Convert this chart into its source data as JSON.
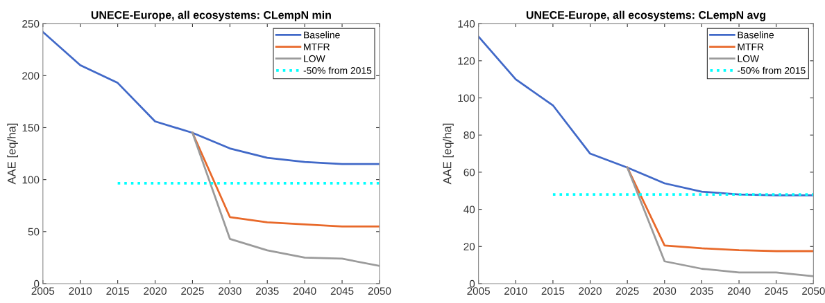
{
  "chart_data": [
    {
      "type": "line",
      "title": "UNECE-Europe, all ecosystems: CLempN min",
      "ylabel": "AAE [eq/ha]",
      "x": [
        2005,
        2010,
        2015,
        2020,
        2025,
        2030,
        2035,
        2040,
        2045,
        2050
      ],
      "series": [
        {
          "name": "Baseline",
          "color": "#4169c8",
          "values": [
            242,
            210,
            193,
            156,
            145,
            130,
            121,
            117,
            115,
            115
          ]
        },
        {
          "name": "MTFR",
          "color": "#e8692a",
          "x": [
            2025,
            2030,
            2035,
            2040,
            2045,
            2050
          ],
          "values": [
            145,
            64,
            59,
            57,
            55,
            55
          ]
        },
        {
          "name": "LOW",
          "color": "#9b9b9b",
          "x": [
            2025,
            2030,
            2035,
            2040,
            2045,
            2050
          ],
          "values": [
            145,
            43,
            32,
            25,
            24,
            17
          ]
        },
        {
          "name": "-50% from 2015",
          "color": "#00ffff",
          "line_style": "dotted",
          "x": [
            2015,
            2050
          ],
          "values": [
            96.5,
            96.5
          ]
        }
      ],
      "xlim": [
        2005,
        2050
      ],
      "xticks": [
        2005,
        2010,
        2015,
        2020,
        2025,
        2030,
        2035,
        2040,
        2045,
        2050
      ],
      "ylim": [
        0,
        250
      ],
      "yticks": [
        0,
        50,
        100,
        150,
        200,
        250
      ],
      "legend": "top right",
      "line_style": "solid"
    },
    {
      "type": "line",
      "title": "UNECE-Europe, all ecosystems: CLempN avg",
      "ylabel": "AAE [eq/ha]",
      "x": [
        2005,
        2010,
        2015,
        2020,
        2025,
        2030,
        2035,
        2040,
        2045,
        2050
      ],
      "series": [
        {
          "name": "Baseline",
          "color": "#4169c8",
          "values": [
            133,
            110,
            96,
            70,
            62.5,
            54,
            49.5,
            48,
            47.5,
            47.5
          ]
        },
        {
          "name": "MTFR",
          "color": "#e8692a",
          "x": [
            2025,
            2030,
            2035,
            2040,
            2045,
            2050
          ],
          "values": [
            62.5,
            20.5,
            19,
            18,
            17.5,
            17.5
          ]
        },
        {
          "name": "LOW",
          "color": "#9b9b9b",
          "x": [
            2025,
            2030,
            2035,
            2040,
            2045,
            2050
          ],
          "values": [
            62.5,
            12,
            8,
            6,
            6,
            4
          ]
        },
        {
          "name": "-50% from 2015",
          "color": "#00ffff",
          "line_style": "dotted",
          "x": [
            2015,
            2050
          ],
          "values": [
            48,
            48
          ]
        }
      ],
      "xlim": [
        2005,
        2050
      ],
      "xticks": [
        2005,
        2010,
        2015,
        2020,
        2025,
        2030,
        2035,
        2040,
        2045,
        2050
      ],
      "ylim": [
        0,
        140
      ],
      "yticks": [
        0,
        20,
        40,
        60,
        80,
        100,
        120,
        140
      ],
      "legend": "top right",
      "line_style": "solid"
    }
  ]
}
